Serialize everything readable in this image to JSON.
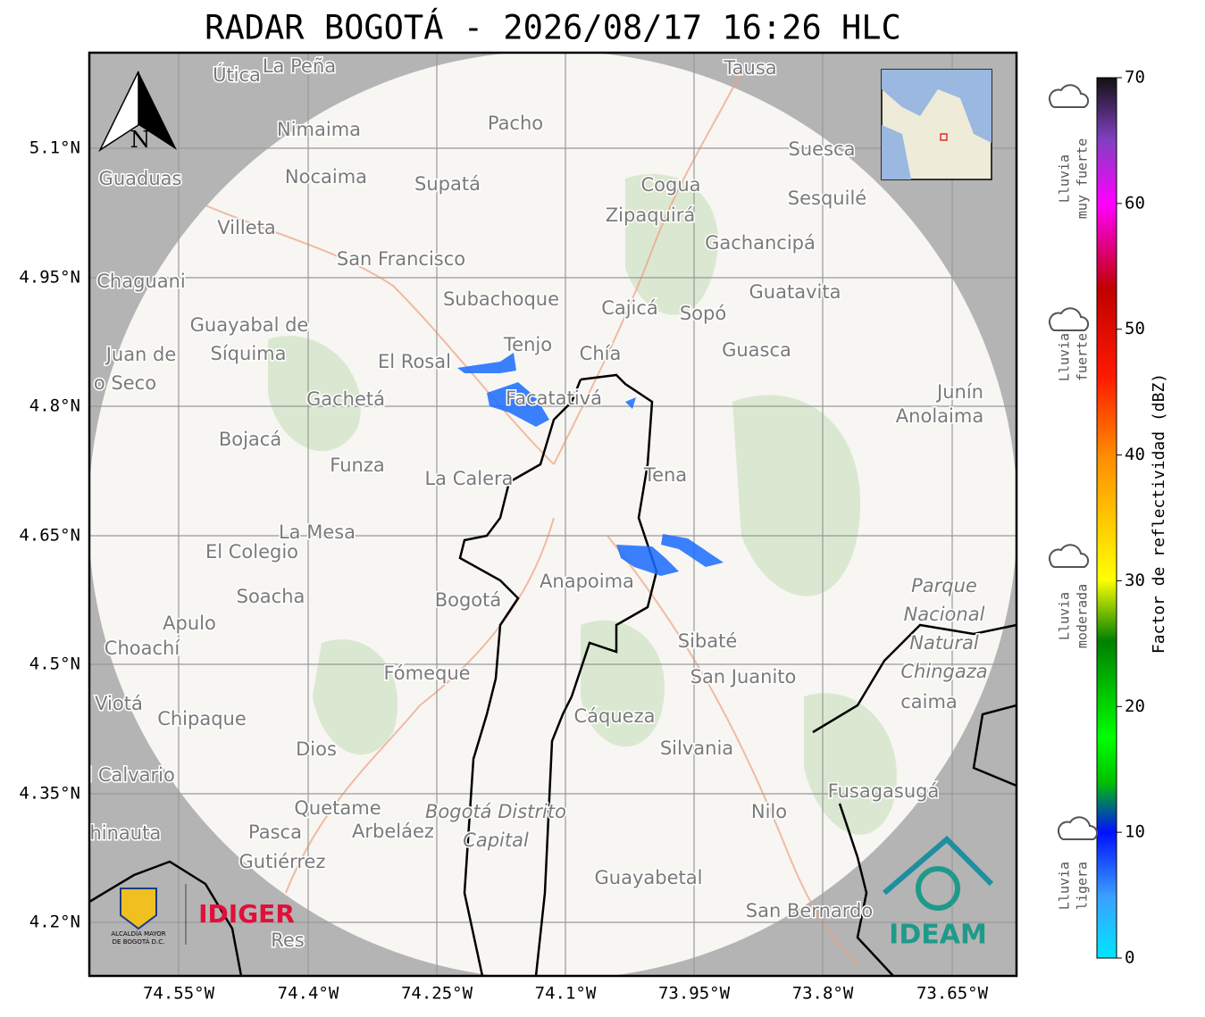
{
  "title": "RADAR BOGOTÁ - 2026/08/17 16:26 HLC",
  "north": "N",
  "lat_labels": [
    "5.1°N",
    "4.95°N",
    "4.8°N",
    "4.65°N",
    "4.5°N",
    "4.35°N",
    "4.2°N"
  ],
  "lon_labels": [
    "74.55°W",
    "74.4°W",
    "74.25°W",
    "74.1°W",
    "73.95°W",
    "73.8°W",
    "73.65°W"
  ],
  "places": [
    "Útica",
    "La Peña",
    "Tausa",
    "Pacho",
    "Nimaima",
    "Guaduas",
    "Nocaima",
    "Supatá",
    "Cogua",
    "Suesca",
    "Sesquilé",
    "Zipaquirá",
    "Villeta",
    "Gachancipá",
    "San Francisco",
    "Chaguani",
    "Guatavita",
    "Subachoque",
    "Cajicá",
    "Sopó",
    "Guayabal de",
    "Síquima",
    "Juan de",
    "o Seco",
    "Tenjo",
    "Chía",
    "Guasca",
    "El Rosal",
    "Facatativá",
    "Gachetá",
    "Junín",
    "Anolaima",
    "Bojacá",
    "Funza",
    "La Calera",
    "Tena",
    "La Mesa",
    "El Colegio",
    "Soacha",
    "Bogotá",
    "Anapoima",
    "Apulo",
    "Choachí",
    "Sibaté",
    "Fómeque",
    "San Juanito",
    "caima",
    "Viotá",
    "Chipaque",
    "Cáqueza",
    "Silvania",
    "Dios",
    "El Calvario",
    "Fusagasugá",
    "Quetame",
    "Nilo",
    "Chinauta",
    "Pasca",
    "Arbeláez",
    "Gutiérrez",
    "Guayabetal",
    "San Bernardo",
    "Res"
  ],
  "park_labels": [
    "Parque",
    "Nacional",
    "Natural",
    "Chingaza"
  ],
  "district_labels": [
    "Bogotá Distrito",
    "Capital"
  ],
  "colorbar": {
    "label": "Factor de reflectividad (dBZ)",
    "ticks": [
      0,
      10,
      20,
      30,
      40,
      50,
      60,
      70
    ]
  },
  "rain_levels": [
    [
      "Lluvia",
      "muy fuerte"
    ],
    [
      "Lluvia",
      "fuerte"
    ],
    [
      "Lluvia",
      "moderada"
    ],
    [
      "Lluvia",
      "ligera"
    ]
  ],
  "logos": {
    "alcaldia": [
      "ALCALDÍA MAYOR",
      "DE BOGOTÁ D.C."
    ],
    "idiger": "IDIGER",
    "ideam": "IDEAM"
  }
}
